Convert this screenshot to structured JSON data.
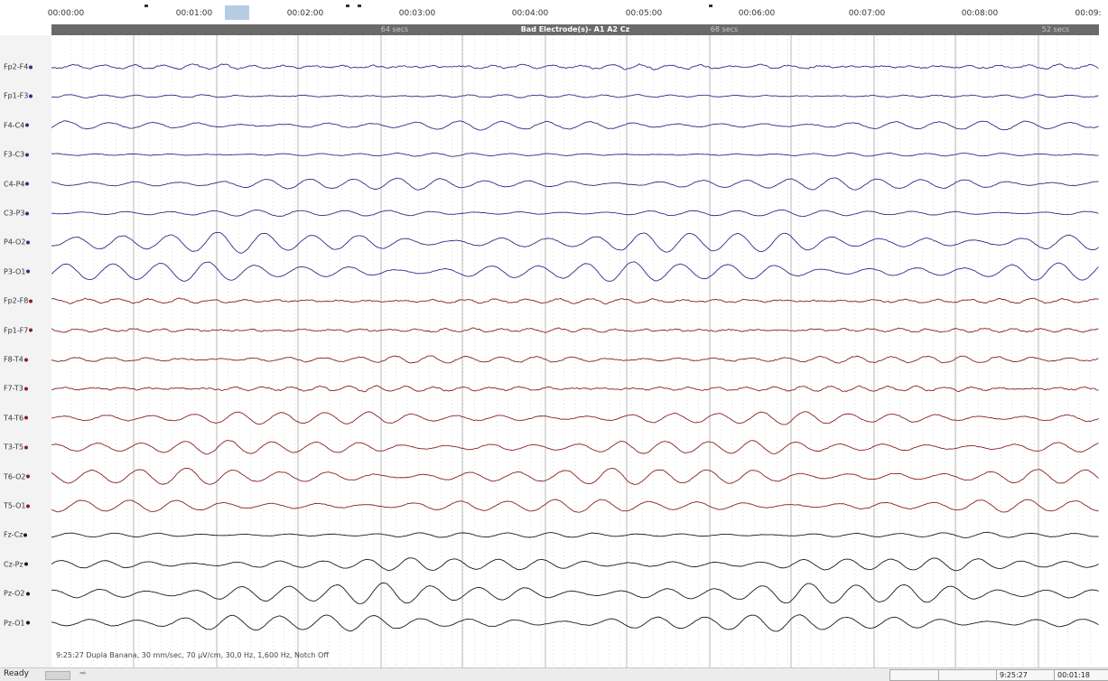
{
  "time_ruler": {
    "labels": [
      "00:00:00",
      "00:01:00",
      "00:02:00",
      "00:03:00",
      "00:04:00",
      "00:05:00",
      "00:06:00",
      "00:07:00",
      "00:08:00",
      "00:09:"
    ]
  },
  "event_bar": {
    "major": "Bad Electrode(s)- A1 A2 Cz",
    "minor": [
      "64 secs",
      "68 secs",
      "52 secs"
    ]
  },
  "channels": [
    {
      "name": "Fp2-F4",
      "group": "blue"
    },
    {
      "name": "Fp1-F3",
      "group": "blue"
    },
    {
      "name": "F4-C4",
      "group": "blue"
    },
    {
      "name": "F3-C3",
      "group": "blue"
    },
    {
      "name": "C4-P4",
      "group": "blue"
    },
    {
      "name": "C3-P3",
      "group": "blue"
    },
    {
      "name": "P4-O2",
      "group": "blue"
    },
    {
      "name": "P3-O1",
      "group": "blue"
    },
    {
      "name": "Fp2-F8",
      "group": "red"
    },
    {
      "name": "Fp1-F7",
      "group": "red"
    },
    {
      "name": "F8-T4",
      "group": "red"
    },
    {
      "name": "F7-T3",
      "group": "red"
    },
    {
      "name": "T4-T6",
      "group": "red"
    },
    {
      "name": "T3-T5",
      "group": "red"
    },
    {
      "name": "T6-O2",
      "group": "red"
    },
    {
      "name": "T5-O1",
      "group": "red"
    },
    {
      "name": "Fz-Cz",
      "group": "black"
    },
    {
      "name": "Cz-Pz",
      "group": "black"
    },
    {
      "name": "Pz-O2",
      "group": "black"
    },
    {
      "name": "Pz-O1",
      "group": "black"
    }
  ],
  "group_colors": {
    "blue": "#2a2f86",
    "red": "#8a1f1f",
    "black": "#1a1a1a"
  },
  "montage_info": "9:25:27 Dupla Banana, 30 mm/sec, 70 µV/cm, 30,0 Hz, 1,600 Hz, Notch Off",
  "status_bar": {
    "ready": "Ready",
    "next_arrow": "➡",
    "fields": [
      "",
      "",
      "9:25:27",
      "00:01:18"
    ]
  }
}
